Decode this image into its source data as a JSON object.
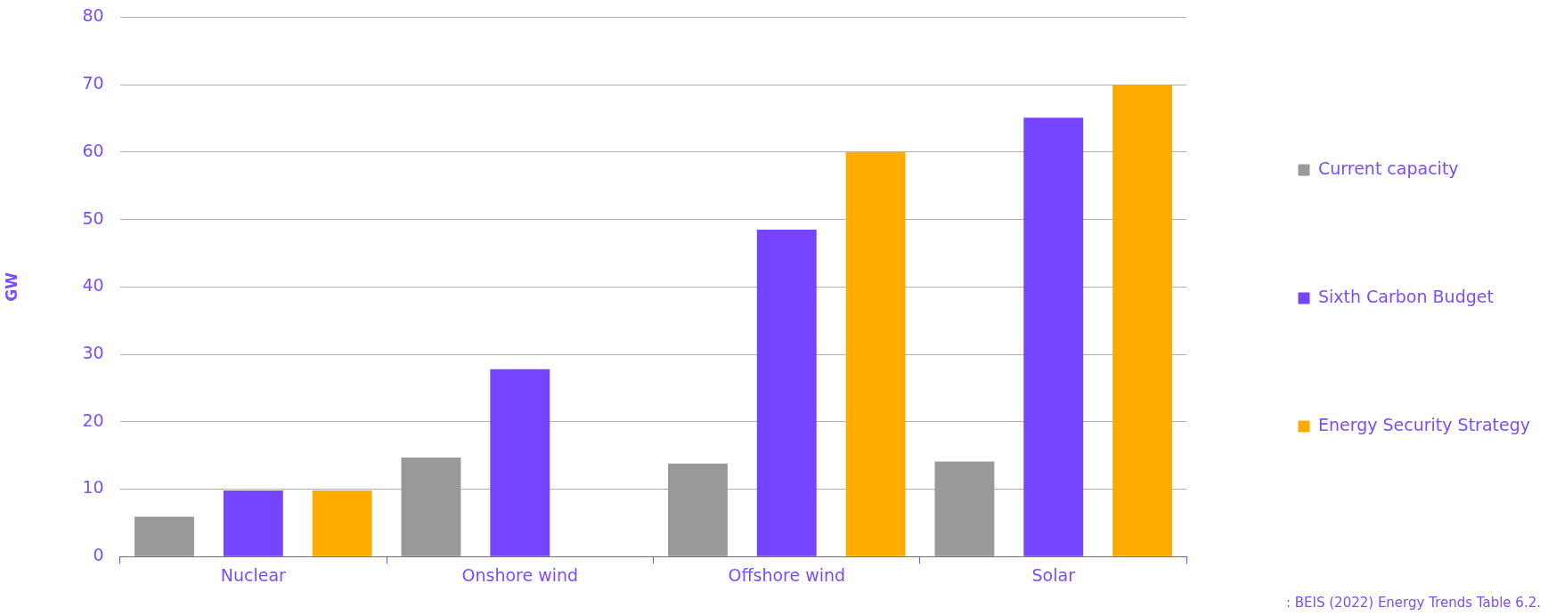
{
  "chart_data": {
    "type": "bar",
    "ylabel": "GW",
    "categories": [
      "Nuclear",
      "Onshore wind",
      "Offshore wind",
      "Solar"
    ],
    "series": [
      {
        "name": "Current capacity",
        "color": "#999999",
        "values": [
          5.9,
          14.7,
          13.8,
          14.1
        ]
      },
      {
        "name": "Sixth Carbon Budget",
        "color": "#7444ff",
        "values": [
          9.8,
          27.8,
          48.5,
          65.1
        ]
      },
      {
        "name": "Energy Security Strategy",
        "color": "#ffab00",
        "values": [
          9.8,
          null,
          60,
          70
        ]
      }
    ],
    "ylim": [
      0,
      80
    ],
    "yticks": [
      0,
      10,
      20,
      30,
      40,
      50,
      60,
      70,
      80
    ],
    "grid": "y",
    "legend": "right",
    "annotations": [
      ": BEIS (2022) Energy Trends Table 6.2."
    ]
  }
}
